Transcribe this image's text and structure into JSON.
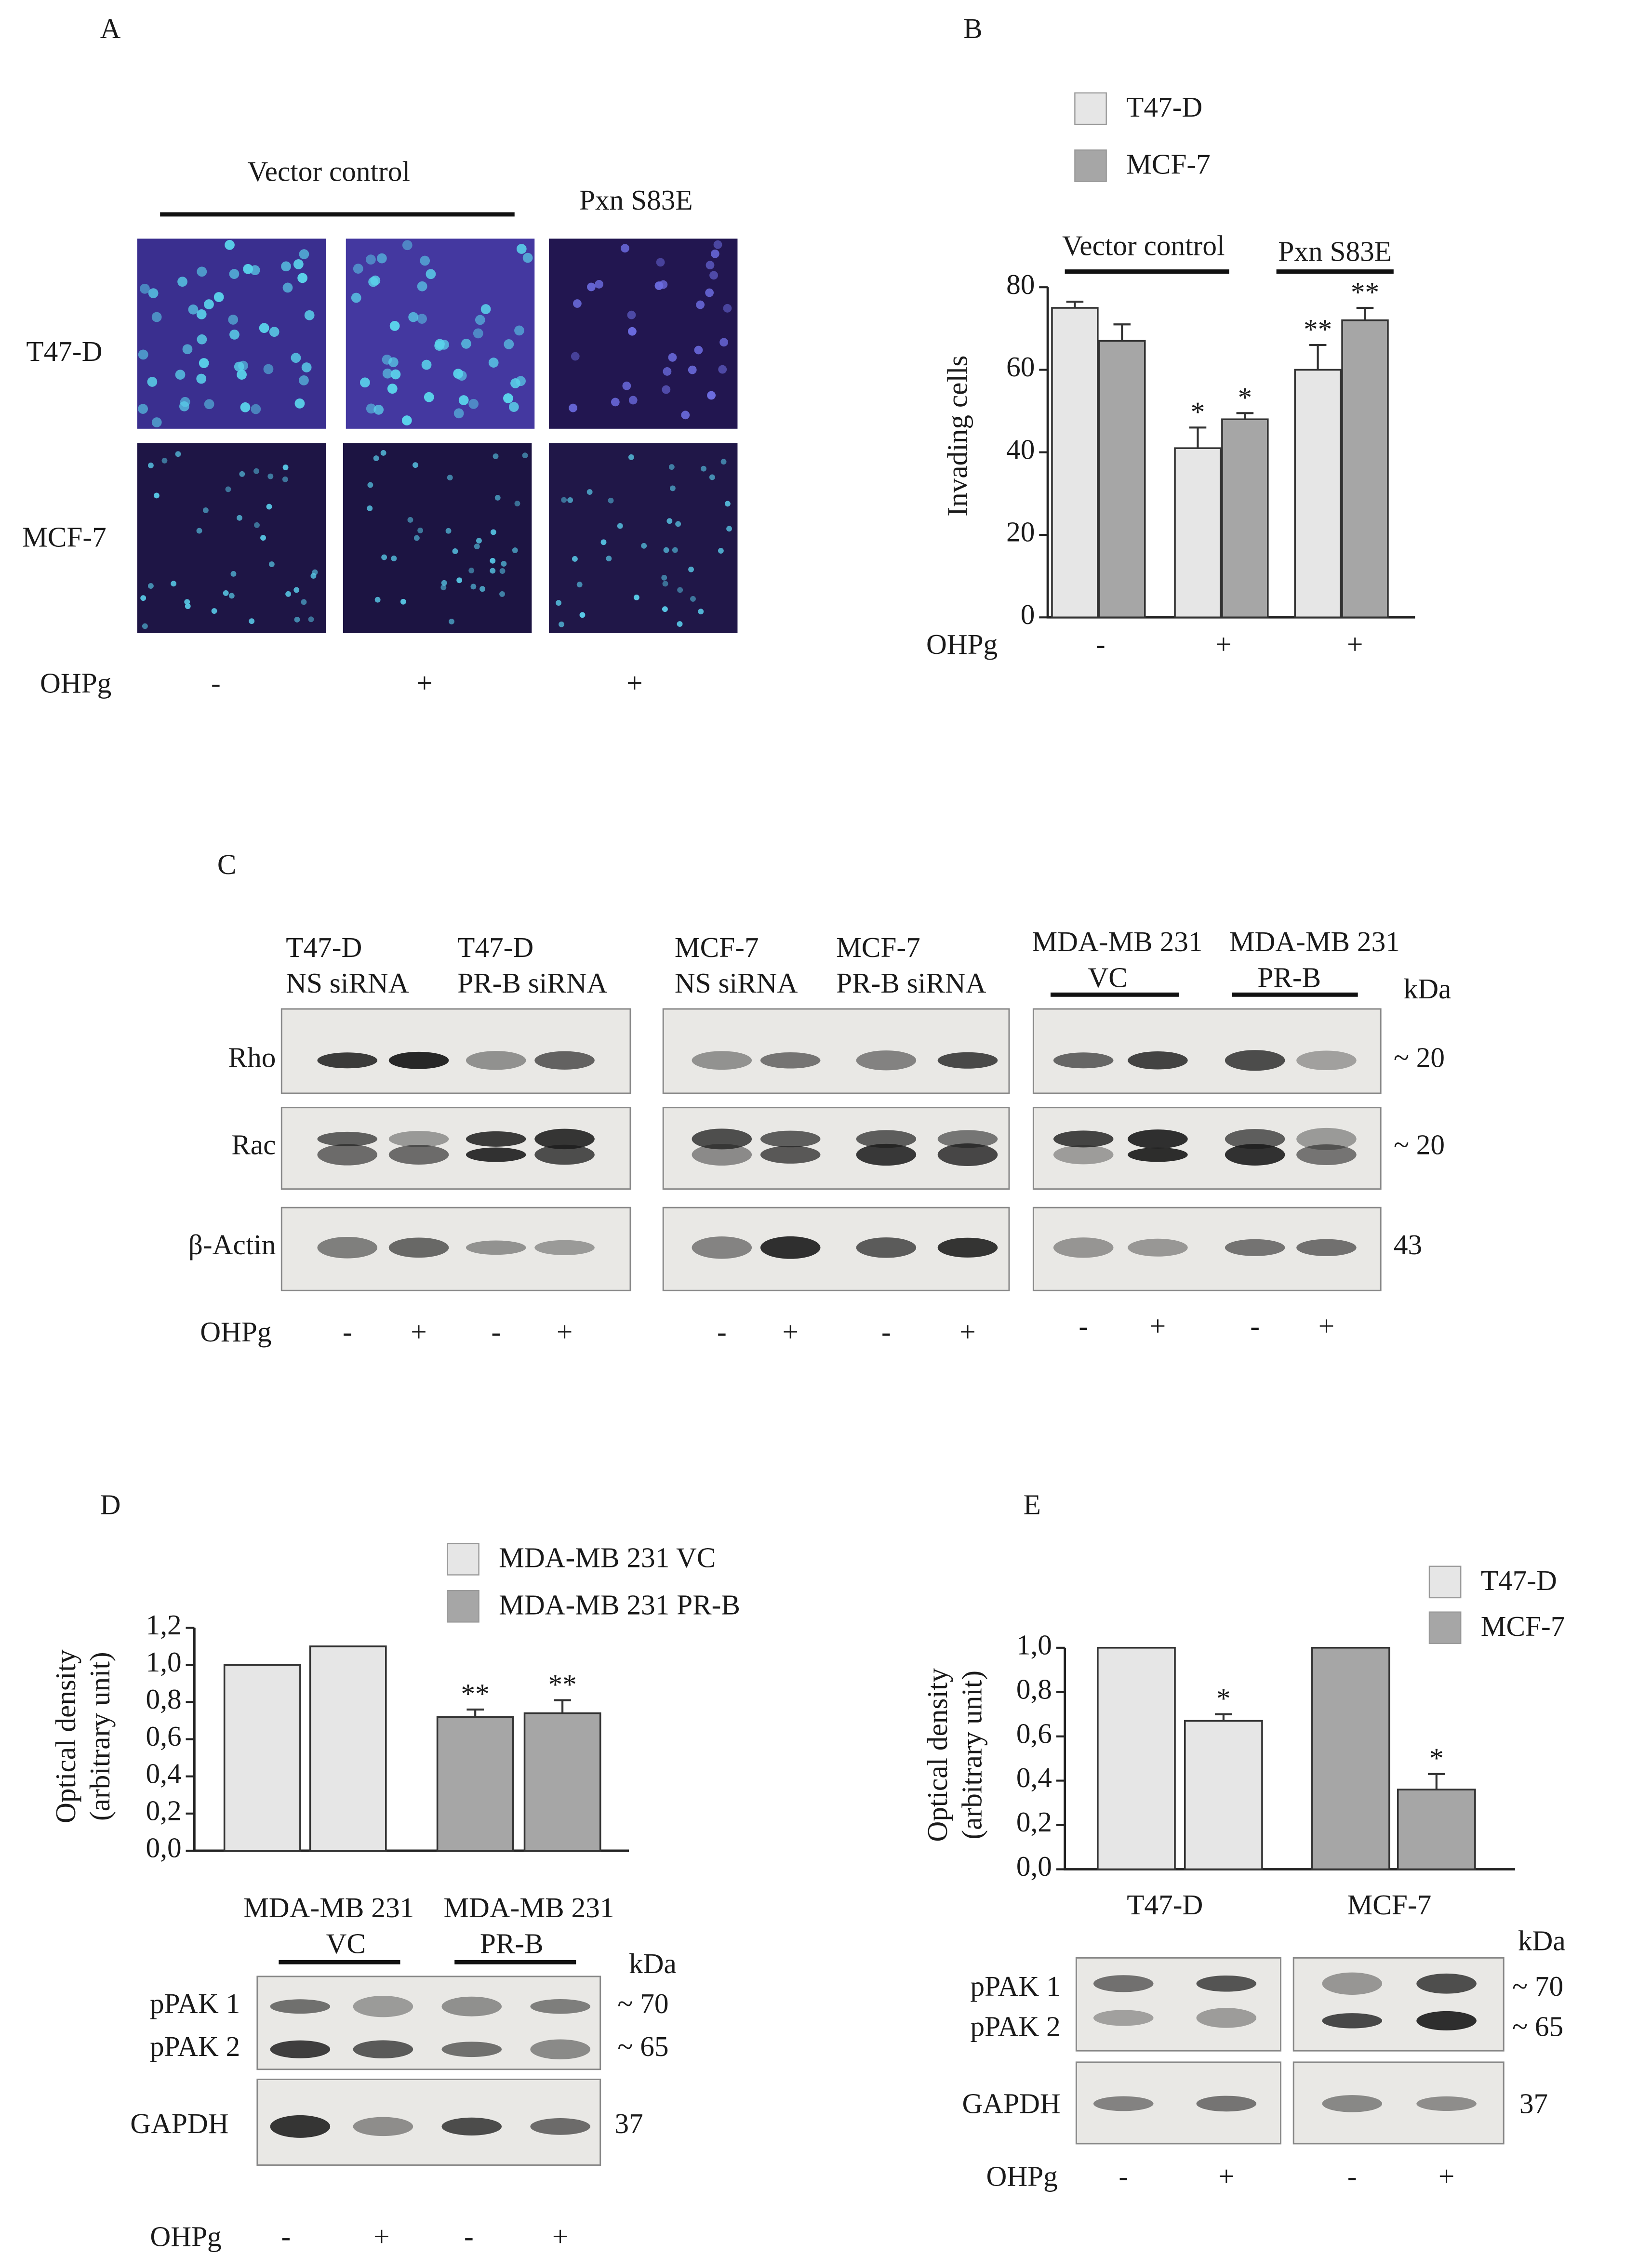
{
  "panels": {
    "A": {
      "label": "A",
      "group_labels": [
        "Vector control",
        "Pxn S83E"
      ],
      "row_labels": [
        "T47-D",
        "MCF-7"
      ],
      "treatment_label": "OHPg",
      "treatments": [
        "-",
        "+",
        "+"
      ]
    },
    "C": {
      "label": "C",
      "lane_groups": [
        [
          "T47-D",
          "NS siRNA"
        ],
        [
          "T47-D",
          "PR-B siRNA"
        ],
        [
          "MCF-7",
          "NS siRNA"
        ],
        [
          "MCF-7",
          "PR-B siRNA"
        ],
        [
          "MDA-MB 231",
          "VC"
        ],
        [
          "MDA-MB 231",
          "PR-B"
        ]
      ],
      "rows": [
        "Rho",
        "Rac",
        "β-Actin"
      ],
      "kda_label": "kDa",
      "kda": [
        "~ 20",
        "~ 20",
        "43"
      ],
      "treatment_label": "OHPg",
      "treatments": [
        "-",
        "+",
        "-",
        "+",
        "-",
        "+",
        "-",
        "+",
        "-",
        "+",
        "-",
        "+"
      ]
    },
    "D_blot": {
      "group_labels": [
        [
          "MDA-MB 231",
          "VC"
        ],
        [
          "MDA-MB 231",
          "PR-B"
        ]
      ],
      "rows": [
        "pPAK 1",
        "pPAK 2",
        "GAPDH"
      ],
      "kda_label": "kDa",
      "kda": [
        "~ 70",
        "~ 65",
        "37"
      ],
      "treatment_label": "OHPg",
      "treatments": [
        "-",
        "+",
        "-",
        "+"
      ]
    },
    "E_blot": {
      "rows": [
        "pPAK 1",
        "pPAK 2",
        "GAPDH"
      ],
      "kda_label": "kDa",
      "kda": [
        "~ 70",
        "~ 65",
        "37"
      ],
      "treatment_label": "OHPg",
      "treatments": [
        "-",
        "+",
        "-",
        "+"
      ]
    }
  },
  "chart_data": [
    {
      "type": "bar",
      "panel_label": "B",
      "ylabel": "Invading cells",
      "x_row_label": "OHPg",
      "categories": [
        "-",
        "+",
        "+"
      ],
      "annotations": [
        "Vector control",
        "Pxn S83E"
      ],
      "series": [
        {
          "name": "T47-D",
          "color": "#e6e6e6",
          "values": [
            75,
            41,
            60
          ],
          "errors": [
            1.5,
            5,
            6
          ],
          "significance": [
            null,
            "*",
            "**"
          ]
        },
        {
          "name": "MCF-7",
          "color": "#a6a6a6",
          "values": [
            67,
            48,
            72
          ],
          "errors": [
            4,
            1.5,
            3
          ],
          "significance": [
            null,
            "*",
            "**"
          ]
        }
      ],
      "ylim": [
        0,
        80
      ],
      "yticks": [
        0,
        20,
        40,
        60,
        80
      ]
    },
    {
      "type": "bar",
      "panel_label": "D",
      "ylabel": [
        "Optical density",
        "(arbitrary unit)"
      ],
      "categories": [
        null,
        null,
        null,
        null
      ],
      "series": [
        {
          "name": "MDA-MB 231 VC",
          "color": "#e6e6e6",
          "values": [
            1.0,
            1.1,
            null,
            null
          ],
          "errors": [
            null,
            null,
            null,
            null
          ],
          "significance": [
            null,
            null,
            null,
            null
          ]
        },
        {
          "name": "MDA-MB 231 PR-B",
          "color": "#a6a6a6",
          "values": [
            null,
            null,
            0.72,
            0.74
          ],
          "errors": [
            null,
            null,
            0.04,
            0.07
          ],
          "significance": [
            null,
            null,
            "**",
            "**"
          ]
        }
      ],
      "ylim": [
        0,
        1.2
      ],
      "yticks": [
        {
          "value": 0,
          "label": "0,0"
        },
        {
          "value": 0.2,
          "label": "0,2"
        },
        {
          "value": 0.4,
          "label": "0,4"
        },
        {
          "value": 0.6,
          "label": "0,6"
        },
        {
          "value": 0.8,
          "label": "0,8"
        },
        {
          "value": 1.0,
          "label": "1,0"
        },
        {
          "value": 1.2,
          "label": "1,2"
        }
      ]
    },
    {
      "type": "bar",
      "panel_label": "E",
      "ylabel": [
        "Optical density",
        "(arbitrary unit)"
      ],
      "categories": [
        null,
        null,
        null,
        null
      ],
      "group_labels": [
        "T47-D",
        "MCF-7"
      ],
      "series": [
        {
          "name": "T47-D",
          "color": "#e6e6e6",
          "values": [
            1.0,
            0.67,
            null,
            null
          ],
          "errors": [
            null,
            0.03,
            null,
            null
          ],
          "significance": [
            null,
            "*",
            null,
            null
          ]
        },
        {
          "name": "MCF-7",
          "color": "#a6a6a6",
          "values": [
            null,
            null,
            1.0,
            0.36
          ],
          "errors": [
            null,
            null,
            null,
            0.07
          ],
          "significance": [
            null,
            null,
            null,
            "*"
          ]
        }
      ],
      "ylim": [
        0,
        1.0
      ],
      "yticks": [
        {
          "value": 0,
          "label": "0,0"
        },
        {
          "value": 0.2,
          "label": "0,2"
        },
        {
          "value": 0.4,
          "label": "0,4"
        },
        {
          "value": 0.6,
          "label": "0,6"
        },
        {
          "value": 0.8,
          "label": "0,8"
        },
        {
          "value": 1.0,
          "label": "1,0"
        }
      ]
    }
  ]
}
